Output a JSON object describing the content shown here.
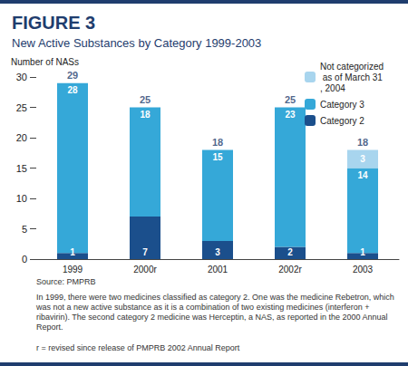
{
  "chart_data": {
    "type": "bar",
    "title": "FIGURE 3",
    "subtitle": "New Active Substances by Category 1999-2003",
    "y_label": "Number of NASs",
    "categories": [
      "1999",
      "2000r",
      "2001",
      "2002r",
      "2003"
    ],
    "series": [
      {
        "name": "Category 2",
        "color": "#1b4f8c",
        "values": [
          1,
          7,
          3,
          2,
          1
        ]
      },
      {
        "name": "Category 3",
        "color": "#35a8d8",
        "values": [
          28,
          18,
          15,
          23,
          14
        ]
      },
      {
        "name": "Not categorized as of March 31, 2004",
        "color": "#a8d5ee",
        "values": [
          null,
          null,
          null,
          null,
          3
        ]
      }
    ],
    "totals": [
      29,
      25,
      18,
      25,
      18
    ],
    "stacked": true,
    "data_labels": true,
    "ylim": [
      0,
      30
    ],
    "yticks": [
      0,
      5,
      10,
      15,
      20,
      25,
      30
    ],
    "grid": false,
    "legend": "top-right",
    "source": "Source: PMPRB",
    "notes": [
      "In 1999, there were two medicines classified as category 2. One was the medicine Rebetron, which was not a new active substance as it is a combination of two existing medicines (interferon + ribavirin). The second category 2 medicine was Herceptin, a NAS, as reported in the 2000 Annual Report.",
      "r = revised since release of PMPRB 2002 Annual Report"
    ]
  }
}
